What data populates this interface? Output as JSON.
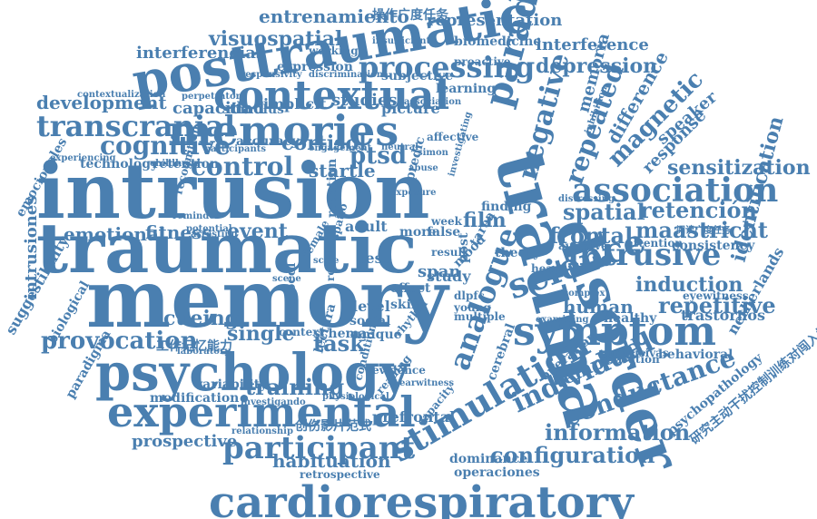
{
  "accent_color": "#4a7fb0",
  "background_color": "#ffffff",
  "words": [
    {
      "text": "memory"
    },
    {
      "text": "intrusion"
    },
    {
      "text": "traumatic"
    },
    {
      "text": "trauma"
    },
    {
      "text": "disorder"
    },
    {
      "text": "psychology"
    },
    {
      "text": "posttraumatic"
    },
    {
      "text": "memories"
    },
    {
      "text": "contextual"
    },
    {
      "text": "cardiorespiratory"
    },
    {
      "text": "experimental"
    },
    {
      "text": "symptom"
    },
    {
      "text": "stimulation"
    },
    {
      "text": "science"
    },
    {
      "text": "paradigm"
    },
    {
      "text": "association"
    },
    {
      "text": "intrusive"
    },
    {
      "text": "participant"
    },
    {
      "text": "processing"
    },
    {
      "text": "transcranial"
    },
    {
      "text": "individual"
    },
    {
      "text": "conductance"
    },
    {
      "text": "control"
    },
    {
      "text": "provocation"
    },
    {
      "text": "cognitive"
    },
    {
      "text": "negative"
    },
    {
      "text": "repeated"
    },
    {
      "text": "magnetic"
    },
    {
      "text": "information"
    },
    {
      "text": "configuration"
    },
    {
      "text": "frontal"
    },
    {
      "text": "spatial"
    },
    {
      "text": "retención"
    },
    {
      "text": "maastricht"
    },
    {
      "text": "identification"
    },
    {
      "text": "repetitive"
    },
    {
      "text": "induction"
    },
    {
      "text": "depression"
    },
    {
      "text": "entrenamiento"
    },
    {
      "text": "visuospatial"
    },
    {
      "text": "sensitization"
    },
    {
      "text": "difference"
    },
    {
      "text": "training"
    },
    {
      "text": "habituation"
    },
    {
      "text": "emotional"
    },
    {
      "text": "fitness"
    },
    {
      "text": "event"
    },
    {
      "text": "cueing"
    },
    {
      "text": "single"
    },
    {
      "text": "task"
    },
    {
      "text": "ptsd"
    },
    {
      "text": "film"
    },
    {
      "text": "cortisol"
    },
    {
      "text": "startle"
    },
    {
      "text": "analogue"
    },
    {
      "text": "temporal"
    },
    {
      "text": "response"
    },
    {
      "text": "memoria"
    },
    {
      "text": "interference"
    },
    {
      "text": "representation"
    },
    {
      "text": "development"
    },
    {
      "text": "capacidad"
    },
    {
      "text": "interferencias"
    },
    {
      "text": "biomedicine"
    },
    {
      "text": "consistency"
    },
    {
      "text": "prospective"
    },
    {
      "text": "modification"
    },
    {
      "text": "variability"
    },
    {
      "text": "prefrontal"
    },
    {
      "text": "speaker"
    },
    {
      "text": "netherlands"
    },
    {
      "text": "trastornos"
    },
    {
      "text": "healthy"
    },
    {
      "text": "behavioral"
    },
    {
      "text": "dominance"
    },
    {
      "text": "operaciones"
    },
    {
      "text": "retrospective"
    },
    {
      "text": "psychopathology"
    },
    {
      "text": "intrusiones"
    },
    {
      "text": "emocionales"
    },
    {
      "text": "suggestibility"
    },
    {
      "text": "paradigma"
    },
    {
      "text": "biological"
    },
    {
      "text": "expression"
    },
    {
      "text": "working"
    },
    {
      "text": "subjective"
    },
    {
      "text": "learning"
    },
    {
      "text": "proactive"
    },
    {
      "text": "affective"
    },
    {
      "text": "implicit"
    },
    {
      "text": "studies"
    },
    {
      "text": "picture"
    },
    {
      "text": "stimulus"
    },
    {
      "text": "technology"
    },
    {
      "text": "retention"
    },
    {
      "text": "accuracy"
    },
    {
      "text": "adult"
    },
    {
      "text": "human"
    },
    {
      "text": "theory"
    },
    {
      "text": "study"
    },
    {
      "text": "level"
    },
    {
      "text": "social"
    },
    {
      "text": "unique"
    },
    {
      "text": "schema"
    },
    {
      "text": "context"
    },
    {
      "text": "protocol"
    },
    {
      "text": "test"
    },
    {
      "text": "mood"
    },
    {
      "text": "span"
    },
    {
      "text": "result"
    },
    {
      "text": "effect"
    },
    {
      "text": "skin"
    },
    {
      "text": "more"
    },
    {
      "text": "false"
    },
    {
      "text": "post"
    },
    {
      "text": "week"
    },
    {
      "text": "tarea"
    },
    {
      "text": "attention"
    },
    {
      "text": "operation"
    },
    {
      "text": "activation"
    },
    {
      "text": "intrusivas"
    },
    {
      "text": "eyewitness"
    },
    {
      "text": "insufficient"
    },
    {
      "text": "discrimination"
    },
    {
      "text": "perpetrator"
    },
    {
      "text": "responsivity"
    },
    {
      "text": "contextualization"
    },
    {
      "text": "childhood"
    },
    {
      "text": "experiencing"
    },
    {
      "text": "predic"
    },
    {
      "text": "cerebral"
    },
    {
      "text": "capacity"
    },
    {
      "text": "reading"
    },
    {
      "text": "evidence"
    },
    {
      "text": "rhythm"
    },
    {
      "text": "dlpfc"
    },
    {
      "text": "young"
    },
    {
      "text": "multiple"
    },
    {
      "text": "finding"
    },
    {
      "text": "heart"
    },
    {
      "text": "aversive"
    },
    {
      "text": "complex"
    },
    {
      "text": "inhibition"
    },
    {
      "text": "laboratory"
    },
    {
      "text": "investigando"
    },
    {
      "text": "relationship"
    },
    {
      "text": "physiological"
    },
    {
      "text": "recall"
    },
    {
      "text": "scale"
    },
    {
      "text": "scene"
    },
    {
      "text": "reminder"
    },
    {
      "text": "recognition"
    },
    {
      "text": "potential"
    },
    {
      "text": "abuse"
    },
    {
      "text": "simon"
    },
    {
      "text": "neutral"
    },
    {
      "text": "engagement"
    },
    {
      "text": "condition"
    },
    {
      "text": "earwitness"
    },
    {
      "text": "distressing"
    },
    {
      "text": "examining"
    },
    {
      "text": "exposure"
    },
    {
      "text": "investigating"
    },
    {
      "text": "arresting"
    },
    {
      "text": "participants"
    },
    {
      "text": "lectura"
    },
    {
      "text": "reaction"
    },
    {
      "text": "spatio"
    },
    {
      "text": "female"
    },
    {
      "text": "association"
    },
    {
      "text": "操作广度任务"
    },
    {
      "text": "工作记忆能力"
    },
    {
      "text": "创伤影片范式"
    },
    {
      "text": "阅读广度任务"
    },
    {
      "text": "研究主动干扰控制训练对闯入性记忆的影响"
    }
  ]
}
